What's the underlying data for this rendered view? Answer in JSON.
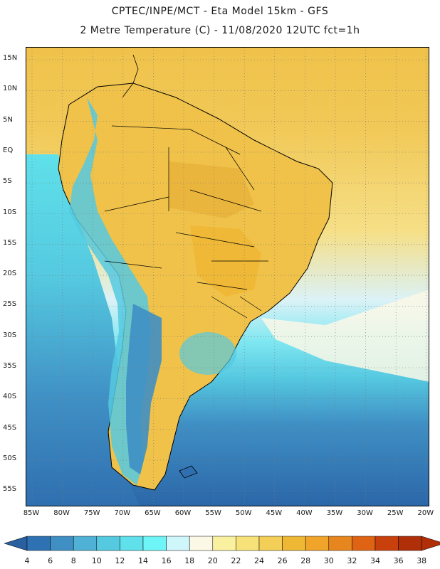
{
  "header": {
    "line1": "CPTEC/INPE/MCT -   Eta Model 15km - GFS",
    "line2": "2 Metre Temperature (C) - 11/08/2020 12UTC fct=1h"
  },
  "map": {
    "lat_ticks": [
      "15N",
      "10N",
      "5N",
      "EQ",
      "5S",
      "10S",
      "15S",
      "20S",
      "25S",
      "30S",
      "35S",
      "40S",
      "45S",
      "50S",
      "55S"
    ],
    "lon_ticks": [
      "85W",
      "80W",
      "75W",
      "70W",
      "65W",
      "60W",
      "55W",
      "50W",
      "45W",
      "40W",
      "35W",
      "30W",
      "25W",
      "20W"
    ],
    "ocean_north_color": "#f2c44a",
    "ocean_south_color": "#2f6fb0",
    "land_border_color": "#000000",
    "grid_color": "#7a7a7a"
  },
  "colorbar": {
    "labels": [
      "4",
      "6",
      "8",
      "10",
      "12",
      "14",
      "16",
      "18",
      "20",
      "22",
      "24",
      "26",
      "28",
      "30",
      "32",
      "34",
      "36",
      "38"
    ],
    "colors": [
      "#2a5fa0",
      "#2f72b3",
      "#3f8fc4",
      "#4fb1d6",
      "#55c9e0",
      "#5fe0ea",
      "#6ef5f7",
      "#cff6fb",
      "#fbf8e6",
      "#f9f0a0",
      "#f7e27a",
      "#f3cf58",
      "#eeb734",
      "#f0a42a",
      "#e7861e",
      "#de6414",
      "#c8400c",
      "#b02f08"
    ],
    "min_arrow_color": "#2a5fa0",
    "max_arrow_color": "#b02f08"
  }
}
